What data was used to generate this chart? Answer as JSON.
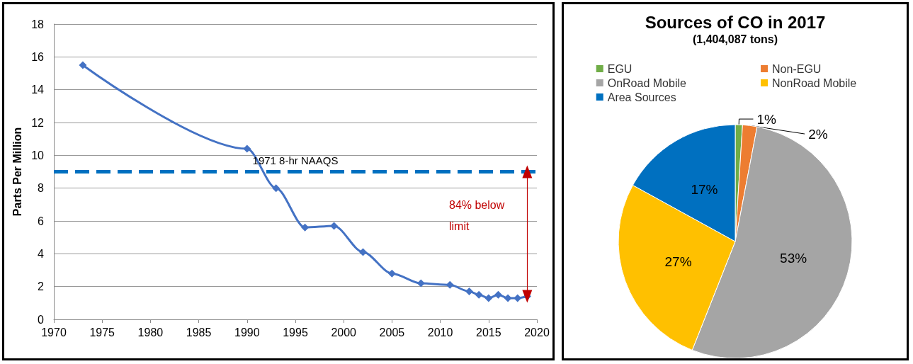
{
  "chart_data": [
    {
      "type": "line",
      "ylabel": "Parts Per Million",
      "x": [
        1973,
        1990,
        1993,
        1996,
        1999,
        2002,
        2005,
        2008,
        2011,
        2013,
        2014,
        2015,
        2016,
        2017,
        2018,
        2019
      ],
      "series": [
        {
          "color": "#4472c4",
          "values": [
            15.5,
            10.4,
            8.0,
            5.6,
            5.7,
            4.1,
            2.8,
            2.2,
            2.1,
            1.7,
            1.5,
            1.3,
            1.5,
            1.3,
            1.3,
            1.4
          ]
        }
      ],
      "xlim": [
        1970,
        2020
      ],
      "xticks": [
        1970,
        1975,
        1980,
        1985,
        1990,
        1995,
        2000,
        2005,
        2010,
        2015,
        2020
      ],
      "ylim": [
        0,
        18
      ],
      "yticks": [
        0,
        2,
        4,
        6,
        8,
        10,
        12,
        14,
        16,
        18
      ],
      "grid": "y",
      "marker": "diamond",
      "ref_lines": [
        {
          "axis": "y",
          "value": 9,
          "label": "1971 8-hr NAAQS",
          "color": "#0070c0",
          "line_style": "dashed"
        }
      ],
      "annotations": [
        "84% below limit"
      ]
    },
    {
      "type": "pie",
      "title": "Sources of CO in 2017",
      "subtitle": "(1,404,087 tons)",
      "categories": [
        "EGU",
        "Non-EGU",
        "OnRoad Mobile",
        "NonRoad Mobile",
        "Area Sources"
      ],
      "values": [
        1,
        2,
        53,
        27,
        17
      ],
      "colors": [
        "#70ad47",
        "#ed7d31",
        "#a5a5a5",
        "#ffc000",
        "#0070c0"
      ],
      "value_labels": [
        "1%",
        "2%",
        "53%",
        "27%",
        "17%"
      ],
      "legend": "top"
    }
  ]
}
